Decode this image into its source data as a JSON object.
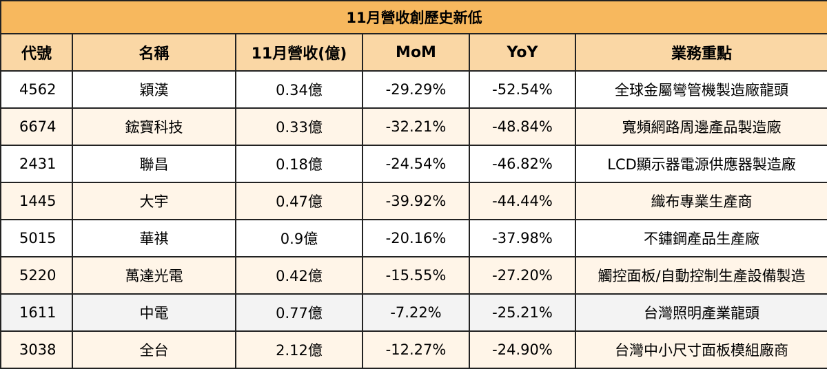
{
  "title": "11月營收創歷史新低",
  "headers": [
    "代號",
    "名稱",
    "11月營收(億)",
    "MoM",
    "YoY",
    "業務重點"
  ],
  "rows": [
    {
      "code": "4562",
      "name": "穎漢",
      "revenue": "0.34億",
      "mom": "-29.29%",
      "yoy": "-52.54%",
      "business": "全球金屬彎管機製造廠龍頭"
    },
    {
      "code": "6674",
      "name": "鋐寶科技",
      "revenue": "0.33億",
      "mom": "-32.21%",
      "yoy": "-48.84%",
      "business": "寬頻網路周邊產品製造廠"
    },
    {
      "code": "2431",
      "name": "聯昌",
      "revenue": "0.18億",
      "mom": "-24.54%",
      "yoy": "-46.82%",
      "business": "LCD顯示器電源供應器製造廠"
    },
    {
      "code": "1445",
      "name": "大宇",
      "revenue": "0.47億",
      "mom": "-39.92%",
      "yoy": "-44.44%",
      "business": "織布專業生產商"
    },
    {
      "code": "5015",
      "name": "華祺",
      "revenue": "0.9億",
      "mom": "-20.16%",
      "yoy": "-37.98%",
      "business": "不鏽鋼產品生產廠"
    },
    {
      "code": "5220",
      "name": "萬達光電",
      "revenue": "0.42億",
      "mom": "-15.55%",
      "yoy": "-27.20%",
      "business": "觸控面板/自動控制生產設備製造"
    },
    {
      "code": "1611",
      "name": "中電",
      "revenue": "0.77億",
      "mom": "-7.22%",
      "yoy": "-25.21%",
      "business": "台灣照明產業龍頭"
    },
    {
      "code": "3038",
      "name": "全台",
      "revenue": "2.12億",
      "mom": "-12.27%",
      "yoy": "-24.90%",
      "business": "台灣中小尺寸面板模組廠商"
    }
  ],
  "colors": {
    "title_bg": "#f7b85e",
    "header_bg": "#fad7a5",
    "row_alt_bg": "#fff5e8",
    "row_gray_bg": "#f3f3f3",
    "border": "#222222"
  }
}
